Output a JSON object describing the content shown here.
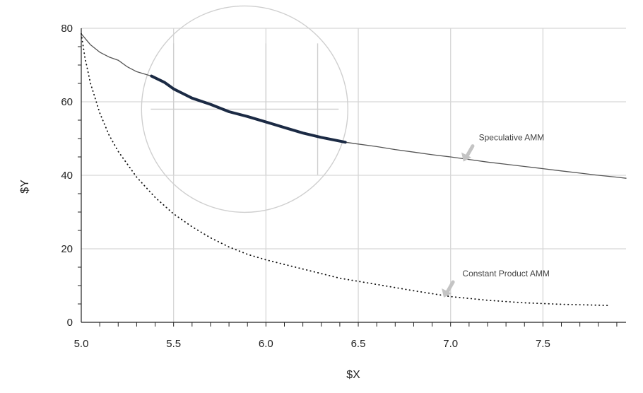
{
  "chart_data": {
    "type": "line",
    "xlabel": "$X",
    "ylabel": "$Y",
    "xlim": [
      5.0,
      7.95
    ],
    "ylim": [
      0,
      80
    ],
    "x_ticks": [
      5.0,
      5.5,
      6.0,
      6.5,
      7.0,
      7.5
    ],
    "x_tick_labels": [
      "5.0",
      "5.5",
      "6.0",
      "6.5",
      "7.0",
      "7.5"
    ],
    "y_ticks": [
      0,
      20,
      40,
      60,
      80
    ],
    "y_tick_labels": [
      "0",
      "20",
      "40",
      "60",
      "80"
    ],
    "grid": true,
    "series": [
      {
        "name": "Speculative AMM",
        "style": "solid",
        "color": "#555555",
        "x": [
          5.0,
          5.05,
          5.1,
          5.15,
          5.2,
          5.25,
          5.3,
          5.38,
          5.45,
          5.5,
          5.6,
          5.7,
          5.8,
          5.9,
          6.0,
          6.1,
          6.2,
          6.3,
          6.43,
          6.5,
          6.6,
          6.7,
          6.8,
          6.9,
          7.0,
          7.1,
          7.2,
          7.3,
          7.4,
          7.5,
          7.6,
          7.7,
          7.8,
          7.9,
          7.95
        ],
        "y": [
          78.5,
          75.5,
          73.5,
          72.2,
          71.3,
          69.5,
          68.2,
          67.0,
          65.3,
          63.5,
          61.0,
          59.3,
          57.3,
          56.0,
          54.5,
          53.0,
          51.5,
          50.3,
          49.0,
          48.5,
          47.8,
          47.0,
          46.3,
          45.6,
          45.0,
          44.3,
          43.6,
          43.0,
          42.4,
          41.8,
          41.2,
          40.6,
          40.0,
          39.5,
          39.2
        ]
      },
      {
        "name": "Constant Product AMM",
        "style": "dotted",
        "color": "#111111",
        "x": [
          5.0,
          5.02,
          5.05,
          5.1,
          5.15,
          5.2,
          5.3,
          5.4,
          5.5,
          5.6,
          5.7,
          5.8,
          5.9,
          6.0,
          6.2,
          6.4,
          6.6,
          6.8,
          7.0,
          7.2,
          7.4,
          7.6,
          7.85
        ],
        "y": [
          78.5,
          72.0,
          65.0,
          57.0,
          51.0,
          46.5,
          39.5,
          34.0,
          29.5,
          26.0,
          23.0,
          20.5,
          18.5,
          17.0,
          14.5,
          12.0,
          10.3,
          8.6,
          7.0,
          6.0,
          5.3,
          4.9,
          4.6
        ]
      },
      {
        "name": "highlighted segment",
        "style": "bold",
        "color": "#1b2a44",
        "x": [
          5.38,
          5.45,
          5.5,
          5.6,
          5.7,
          5.8,
          5.9,
          6.0,
          6.1,
          6.2,
          6.3,
          6.43
        ],
        "y": [
          67.0,
          65.3,
          63.5,
          61.0,
          59.3,
          57.3,
          56.0,
          54.5,
          53.0,
          51.5,
          50.3,
          49.0
        ]
      }
    ],
    "annotations": [
      {
        "text": "Speculative AMM",
        "x": 7.33,
        "y": 49.5
      },
      {
        "text": "Constant Product AMM",
        "x": 7.3,
        "y": 12.5
      }
    ]
  }
}
